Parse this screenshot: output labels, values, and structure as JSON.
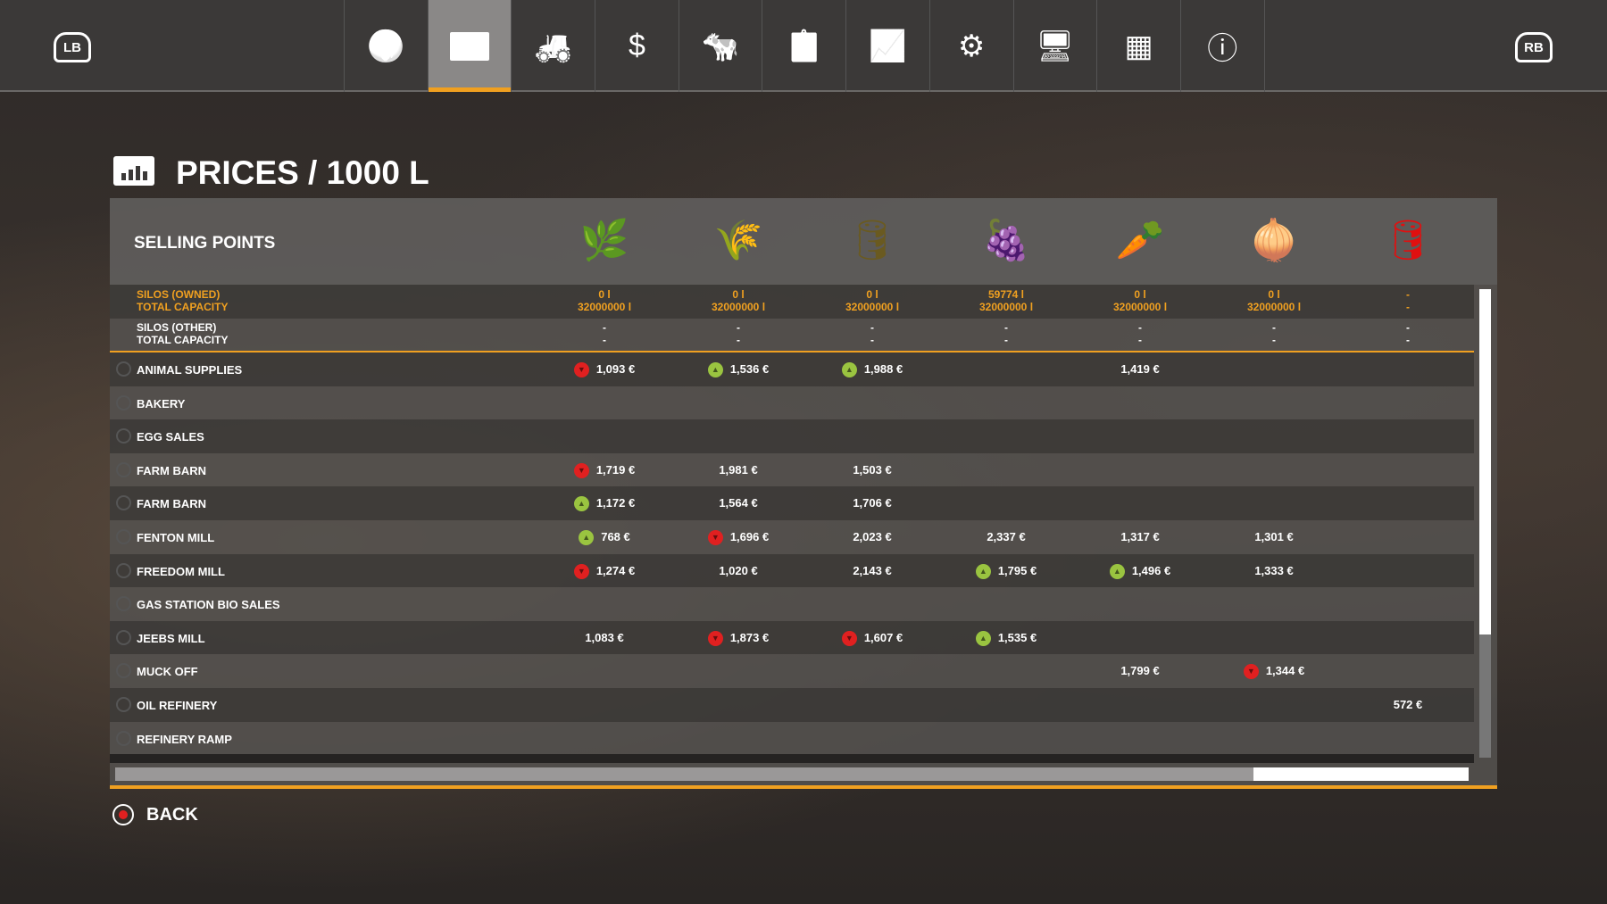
{
  "topbar": {
    "lb": "LB",
    "rb": "RB",
    "active_tab": 1,
    "tabs": [
      {
        "icon": "globe-icon",
        "g": "🌍"
      },
      {
        "icon": "chart-icon",
        "g": ""
      },
      {
        "icon": "tractor-icon",
        "g": "🚜"
      },
      {
        "icon": "dollar-icon",
        "g": "$"
      },
      {
        "icon": "cow-icon",
        "g": "🐄"
      },
      {
        "icon": "contracts-icon",
        "g": "📋"
      },
      {
        "icon": "presentation-icon",
        "g": "📈"
      },
      {
        "icon": "vehicle-settings-icon",
        "g": "⚙"
      },
      {
        "icon": "display-settings-icon",
        "g": "🖥"
      },
      {
        "icon": "production-icon",
        "g": "▦"
      },
      {
        "icon": "help-info-icon",
        "g": "ⓘ"
      }
    ]
  },
  "page": {
    "title": "PRICES / 1000 L"
  },
  "table": {
    "header": "SELLING POINTS",
    "fills": [
      {
        "icon": "lupine-icon",
        "g": "🌿",
        "color": "#a050c8"
      },
      {
        "icon": "lavender-bundle-icon",
        "g": "🌾",
        "color": "#c040c0"
      },
      {
        "icon": "bale-icon",
        "g": "🛢",
        "color": "#6a5a20"
      },
      {
        "icon": "sorghum-icon",
        "g": "🍇",
        "color": "#7a3a2a"
      },
      {
        "icon": "carrot-icon",
        "g": "🥕",
        "color": "#f08020"
      },
      {
        "icon": "onion-icon",
        "g": "🧅",
        "color": "#d8a050"
      },
      {
        "icon": "fuel-barrel-icon",
        "g": "🛢",
        "color": "#e01010"
      }
    ],
    "silos_owned": {
      "label": "SILOS (OWNED)",
      "sub": "TOTAL CAPACITY",
      "values": [
        "0 l",
        "0 l",
        "0 l",
        "59774 l",
        "0 l",
        "0 l",
        "-"
      ],
      "capacity": [
        "32000000 l",
        "32000000 l",
        "32000000 l",
        "32000000 l",
        "32000000 l",
        "32000000 l",
        "-"
      ]
    },
    "silos_other": {
      "label": "SILOS (OTHER)",
      "sub": "TOTAL CAPACITY",
      "values": [
        "-",
        "-",
        "-",
        "-",
        "-",
        "-",
        "-"
      ],
      "capacity": [
        "-",
        "-",
        "-",
        "-",
        "-",
        "-",
        "-"
      ]
    },
    "rows": [
      {
        "name": "ANIMAL SUPPLIES",
        "cells": [
          {
            "v": "1,093 €",
            "t": "down"
          },
          {
            "v": "1,536 €",
            "t": "up"
          },
          {
            "v": "1,988 €",
            "t": "up"
          },
          null,
          {
            "v": "1,419 €"
          },
          null,
          null
        ]
      },
      {
        "name": "BAKERY",
        "cells": [
          null,
          null,
          null,
          null,
          null,
          null,
          null
        ]
      },
      {
        "name": "EGG SALES",
        "cells": [
          null,
          null,
          null,
          null,
          null,
          null,
          null
        ]
      },
      {
        "name": "FARM BARN",
        "cells": [
          {
            "v": "1,719 €",
            "t": "down"
          },
          {
            "v": "1,981 €"
          },
          {
            "v": "1,503 €"
          },
          null,
          null,
          null,
          null
        ]
      },
      {
        "name": "FARM BARN",
        "cells": [
          {
            "v": "1,172 €",
            "t": "up"
          },
          {
            "v": "1,564 €"
          },
          {
            "v": "1,706 €"
          },
          null,
          null,
          null,
          null
        ]
      },
      {
        "name": "FENTON MILL",
        "cells": [
          {
            "v": "768 €",
            "t": "up"
          },
          {
            "v": "1,696 €",
            "t": "down"
          },
          {
            "v": "2,023 €"
          },
          {
            "v": "2,337 €"
          },
          {
            "v": "1,317 €"
          },
          {
            "v": "1,301 €"
          },
          null
        ]
      },
      {
        "name": "FREEDOM MILL",
        "cells": [
          {
            "v": "1,274 €",
            "t": "down"
          },
          {
            "v": "1,020 €"
          },
          {
            "v": "2,143 €"
          },
          {
            "v": "1,795 €",
            "t": "up"
          },
          {
            "v": "1,496 €",
            "t": "up"
          },
          {
            "v": "1,333 €"
          },
          null
        ]
      },
      {
        "name": "GAS STATION BIO SALES",
        "cells": [
          null,
          null,
          null,
          null,
          null,
          null,
          null
        ]
      },
      {
        "name": "JEEBS MILL",
        "cells": [
          {
            "v": "1,083 €"
          },
          {
            "v": "1,873 €",
            "t": "down"
          },
          {
            "v": "1,607 €",
            "t": "down"
          },
          {
            "v": "1,535 €",
            "t": "up"
          },
          null,
          null,
          null
        ]
      },
      {
        "name": "MUCK OFF",
        "cells": [
          null,
          null,
          null,
          null,
          {
            "v": "1,799 €"
          },
          {
            "v": "1,344 €",
            "t": "down"
          },
          null
        ]
      },
      {
        "name": "OIL REFINERY",
        "cells": [
          null,
          null,
          null,
          null,
          null,
          null,
          {
            "v": "572 €"
          }
        ]
      },
      {
        "name": "REFINERY RAMP",
        "cells": [
          null,
          null,
          null,
          null,
          null,
          null,
          null
        ]
      }
    ]
  },
  "footer": {
    "back": "BACK"
  },
  "colors": {
    "accent": "#f0a020",
    "up": "#9ac440",
    "down": "#e02020"
  }
}
